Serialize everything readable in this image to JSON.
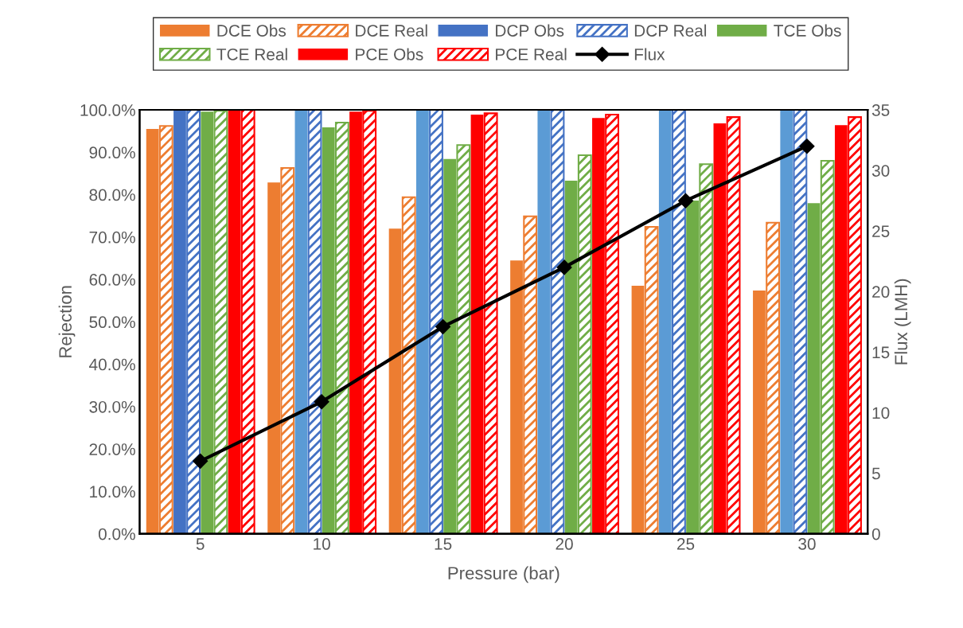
{
  "chart_data": {
    "type": "bar",
    "xlabel": "Pressure (bar)",
    "ylabel": "Rejection",
    "y2label": "Flux (LMH)",
    "categories": [
      "5",
      "10",
      "15",
      "20",
      "25",
      "30"
    ],
    "series": [
      {
        "name": "DCE Obs",
        "color": "#ed7d31",
        "values": [
          95.5,
          82.9,
          72.0,
          64.5,
          58.5,
          57.4
        ]
      },
      {
        "name": "DCE Real",
        "color": "#ed7d31",
        "values": [
          96.2,
          86.3,
          79.4,
          74.9,
          72.4,
          73.4
        ]
      },
      {
        "name": "DCP Obs",
        "color": "#5b9bd5",
        "colors": [
          "#4472c4",
          "#5b9bd5",
          "#5b9bd5",
          "#5b9bd5",
          "#5b9bd5",
          "#5b9bd5"
        ],
        "values": [
          100,
          100,
          100,
          100,
          100,
          100
        ]
      },
      {
        "name": "DCP Real",
        "color": "#4472c4",
        "values": [
          100,
          100,
          100,
          100,
          100,
          100
        ]
      },
      {
        "name": "TCE Obs",
        "color": "#70ad47",
        "values": [
          99.6,
          95.9,
          88.4,
          83.3,
          78.6,
          78.0
        ]
      },
      {
        "name": "TCE Real",
        "color": "#70ad47",
        "values": [
          99.8,
          97.0,
          91.7,
          89.3,
          87.2,
          88.0
        ]
      },
      {
        "name": "PCE Obs",
        "color": "#ff0000",
        "values": [
          100,
          99.6,
          98.9,
          98.1,
          96.8,
          96.4
        ]
      },
      {
        "name": "PCE Real",
        "color": "#ff0000",
        "values": [
          100,
          99.8,
          99.2,
          98.9,
          98.3,
          98.3
        ]
      },
      {
        "name": "Flux",
        "type": "line",
        "axis": "y2",
        "color": "#000000",
        "marker": "diamond",
        "values": [
          6.0,
          10.9,
          17.1,
          22.0,
          27.5,
          32.0
        ]
      }
    ],
    "ylim": [
      0,
      100
    ],
    "yticks": [
      {
        "value": 0,
        "label": "0.0%"
      },
      {
        "value": 10,
        "label": "10.0%"
      },
      {
        "value": 20,
        "label": "20.0%"
      },
      {
        "value": 30,
        "label": "30.0%"
      },
      {
        "value": 40,
        "label": "40.0%"
      },
      {
        "value": 50,
        "label": "50.0%"
      },
      {
        "value": 60,
        "label": "60.0%"
      },
      {
        "value": 70,
        "label": "70.0%"
      },
      {
        "value": 80,
        "label": "80.0%"
      },
      {
        "value": 90,
        "label": "90.0%"
      },
      {
        "value": 100,
        "label": "100.0%"
      }
    ],
    "y2lim": [
      0,
      35
    ],
    "y2ticks": [
      0,
      5,
      10,
      15,
      20,
      25,
      30,
      35
    ],
    "grid": false,
    "legend": "top"
  }
}
